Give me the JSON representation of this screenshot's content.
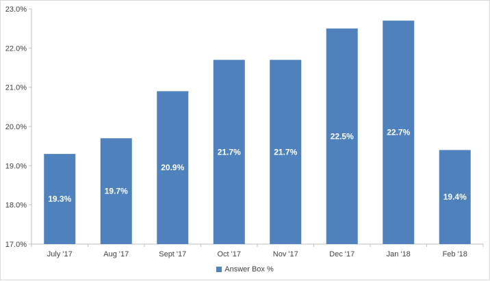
{
  "chart_data": {
    "type": "bar",
    "categories": [
      "July '17",
      "Aug '17",
      "Sept '17",
      "Oct '17",
      "Nov '17",
      "Dec '17",
      "Jan '18",
      "Feb '18"
    ],
    "series": [
      {
        "name": "Answer Box %",
        "values": [
          19.3,
          19.7,
          20.9,
          21.7,
          21.7,
          22.5,
          22.7,
          19.4
        ],
        "labels": [
          "19.3%",
          "19.7%",
          "20.9%",
          "21.7%",
          "21.7%",
          "22.5%",
          "22.7%",
          "19.4%"
        ],
        "color": "#4f81bd"
      }
    ],
    "ylim": [
      17,
      23
    ],
    "yticks": [
      17,
      18,
      19,
      20,
      21,
      22,
      23
    ],
    "ytick_labels": [
      "17.0%",
      "18.0%",
      "19.0%",
      "20.0%",
      "21.0%",
      "22.0%",
      "23.0%"
    ],
    "title": "",
    "xlabel": "",
    "ylabel": "",
    "grid": false,
    "legend_position": "bottom",
    "axis_color": "#bfbfbf"
  }
}
